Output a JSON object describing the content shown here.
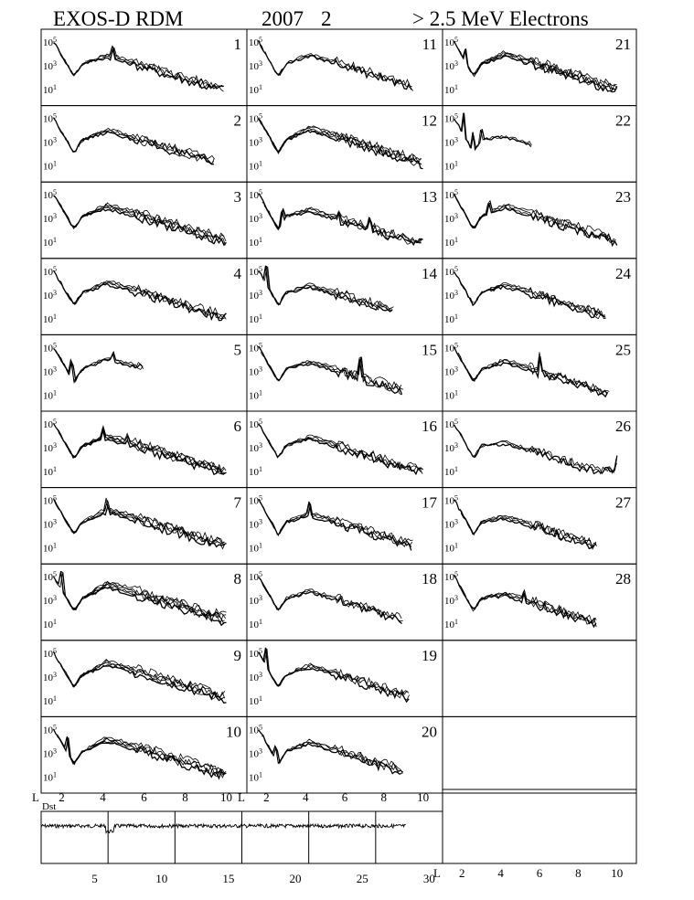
{
  "header": {
    "instrument": "EXOS-D RDM",
    "year": "2007",
    "month": "2",
    "particles": "> 2.5  MeV Electrons"
  },
  "chart_data": {
    "type": "line",
    "grid": false,
    "layout": "small multiples: 3 columns of daily panels (days 1-10, 11-20, 21-28) plus a Dst strip",
    "panel_y_ticks": [
      {
        "label": "10",
        "sup": "5"
      },
      {
        "label": "10",
        "sup": "3"
      },
      {
        "label": "10",
        "sup": "1"
      }
    ],
    "panel_y_scale": "log",
    "x_axis": {
      "label": "L",
      "range": [
        1,
        11
      ],
      "ticks": [
        "2",
        "4",
        "6",
        "8",
        "10"
      ]
    },
    "dst_label": "Dst",
    "dst_x_ticks": [
      "5",
      "10",
      "15",
      "20",
      "25",
      "30"
    ],
    "dst_x_range": [
      1,
      31
    ],
    "dst_day_markers": [
      6,
      11,
      16,
      21,
      26,
      31
    ],
    "days": [
      {
        "day": 1,
        "n": 4,
        "maxL": 9.9,
        "hump": 1.0,
        "spikes": [
          [
            4.5,
            0.8
          ]
        ]
      },
      {
        "day": 2,
        "n": 4,
        "maxL": 9.5,
        "hump": 1.2,
        "spikes": []
      },
      {
        "day": 3,
        "n": 5,
        "maxL": 10.0,
        "hump": 1.2,
        "spikes": []
      },
      {
        "day": 4,
        "n": 4,
        "maxL": 10.0,
        "hump": 1.3,
        "spikes": []
      },
      {
        "day": 5,
        "n": 3,
        "maxL": 6.0,
        "hump": 1.5,
        "spikes": [
          [
            2.5,
            1.2
          ],
          [
            4.5,
            0.6
          ]
        ]
      },
      {
        "day": 6,
        "n": 5,
        "maxL": 10.0,
        "hump": 1.0,
        "spikes": [
          [
            4.0,
            0.8
          ],
          [
            5.2,
            0.5
          ]
        ]
      },
      {
        "day": 7,
        "n": 5,
        "maxL": 10.0,
        "hump": 1.4,
        "spikes": [
          [
            4.2,
            0.7
          ]
        ]
      },
      {
        "day": 8,
        "n": 6,
        "maxL": 10.0,
        "hump": 1.6,
        "spikes": [
          [
            2.0,
            1.5
          ]
        ]
      },
      {
        "day": 9,
        "n": 5,
        "maxL": 10.0,
        "hump": 1.4,
        "spikes": []
      },
      {
        "day": 10,
        "n": 5,
        "maxL": 10.0,
        "hump": 1.4,
        "spikes": [
          [
            2.3,
            1.2
          ]
        ]
      },
      {
        "day": 11,
        "n": 3,
        "maxL": 9.5,
        "hump": 1.2,
        "spikes": []
      },
      {
        "day": 12,
        "n": 5,
        "maxL": 10.0,
        "hump": 1.4,
        "spikes": []
      },
      {
        "day": 13,
        "n": 4,
        "maxL": 10.0,
        "hump": 0.8,
        "spikes": [
          [
            2.8,
            1.0
          ],
          [
            7.3,
            0.7
          ],
          [
            5.7,
            0.5
          ]
        ]
      },
      {
        "day": 14,
        "n": 4,
        "maxL": 8.5,
        "hump": 0.9,
        "spikes": [
          [
            2.0,
            1.6
          ]
        ]
      },
      {
        "day": 15,
        "n": 4,
        "maxL": 9.0,
        "hump": 0.9,
        "spikes": [
          [
            6.8,
            1.6
          ]
        ]
      },
      {
        "day": 16,
        "n": 4,
        "maxL": 10.0,
        "hump": 1.0,
        "spikes": []
      },
      {
        "day": 17,
        "n": 4,
        "maxL": 9.5,
        "hump": 1.0,
        "spikes": [
          [
            4.2,
            0.9
          ]
        ]
      },
      {
        "day": 18,
        "n": 3,
        "maxL": 9.0,
        "hump": 1.0,
        "spikes": []
      },
      {
        "day": 19,
        "n": 4,
        "maxL": 9.3,
        "hump": 1.1,
        "spikes": [
          [
            2.0,
            1.5
          ]
        ]
      },
      {
        "day": 20,
        "n": 4,
        "maxL": 9.0,
        "hump": 1.1,
        "spikes": [
          [
            2.5,
            1.0
          ]
        ]
      },
      {
        "day": 21,
        "n": 5,
        "maxL": 10.0,
        "hump": 1.1,
        "spikes": [
          [
            2.2,
            1.0
          ]
        ]
      },
      {
        "day": 22,
        "n": 2,
        "maxL": 5.6,
        "hump": 0.6,
        "spikes": [
          [
            2.1,
            2.0
          ],
          [
            2.6,
            1.5
          ],
          [
            3.0,
            1.0
          ]
        ]
      },
      {
        "day": 23,
        "n": 4,
        "maxL": 10.0,
        "hump": 1.3,
        "spikes": [
          [
            3.4,
            0.8
          ]
        ]
      },
      {
        "day": 24,
        "n": 4,
        "maxL": 9.5,
        "hump": 1.0,
        "spikes": []
      },
      {
        "day": 25,
        "n": 4,
        "maxL": 9.6,
        "hump": 1.0,
        "spikes": [
          [
            6.0,
            1.2
          ]
        ]
      },
      {
        "day": 26,
        "n": 3,
        "maxL": 10.0,
        "hump": 0.4,
        "spikes": [
          [
            10.0,
            0.9
          ]
        ]
      },
      {
        "day": 27,
        "n": 4,
        "maxL": 9.0,
        "hump": 0.6,
        "spikes": []
      },
      {
        "day": 28,
        "n": 4,
        "maxL": 9.0,
        "hump": 0.5,
        "spikes": [
          [
            5.2,
            0.6
          ]
        ]
      }
    ]
  }
}
